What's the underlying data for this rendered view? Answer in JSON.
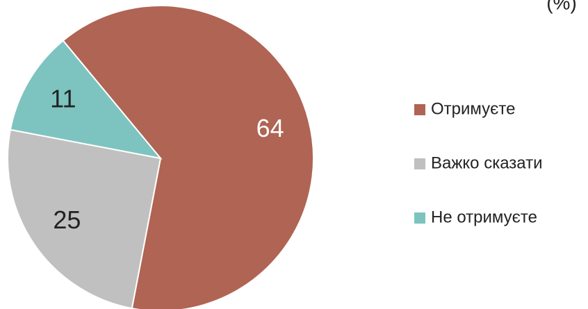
{
  "chart_data": {
    "type": "pie",
    "subtitle": "(%)",
    "categories": [
      "Отримуєте",
      "Важко сказати",
      "Не отримуєте"
    ],
    "values": [
      64,
      25,
      11
    ],
    "colors": [
      "#b06454",
      "#c0c0c0",
      "#7dc4c0"
    ],
    "label_colors": [
      "#ffffff",
      "#222222",
      "#222222"
    ],
    "legend": "right"
  }
}
